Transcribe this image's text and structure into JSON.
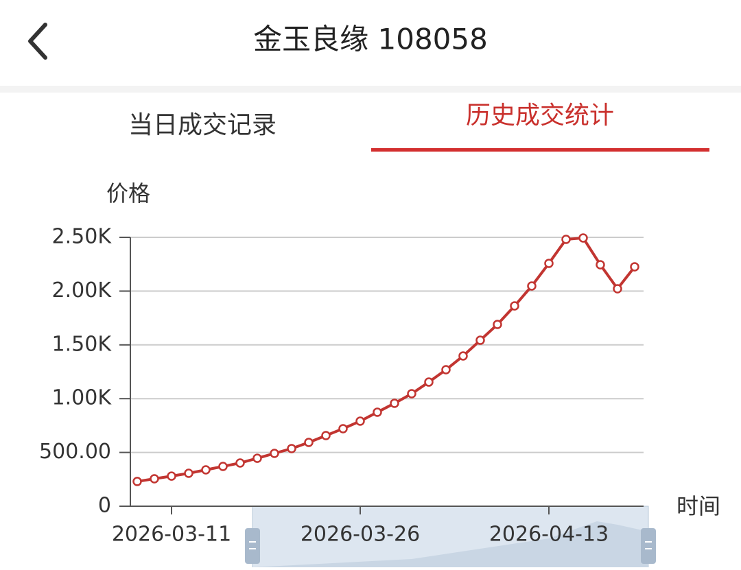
{
  "header": {
    "title": "金玉良缘 108058"
  },
  "tabs": [
    "当日成交记录",
    "历史成交统计"
  ],
  "chart_data": {
    "type": "line",
    "y_axis_label": "价格",
    "x_axis_label": "时间",
    "categories": [
      null,
      null,
      "2026-03-11",
      null,
      null,
      null,
      null,
      null,
      null,
      null,
      null,
      null,
      null,
      "2026-03-26",
      null,
      null,
      null,
      null,
      null,
      null,
      null,
      null,
      null,
      null,
      "2026-04-13",
      null,
      null,
      null,
      null,
      null
    ],
    "values": [
      230,
      255,
      280,
      306,
      338,
      370,
      402,
      446,
      491,
      536,
      593,
      657,
      721,
      791,
      874,
      957,
      1046,
      1154,
      1269,
      1397,
      1543,
      1690,
      1862,
      2047,
      2258,
      2481,
      2494,
      2245,
      2022,
      2226
    ],
    "color": "#c23531",
    "ylim": [
      0,
      2500
    ],
    "yticks": [
      0,
      {
        "value": 500,
        "label": "500.00"
      },
      {
        "value": 1000,
        "label": "1.00K"
      },
      {
        "value": 1500,
        "label": "1.50K"
      },
      {
        "value": 2000,
        "label": "2.00K"
      },
      {
        "value": 2500,
        "label": "2.50K"
      }
    ],
    "grid": true
  }
}
